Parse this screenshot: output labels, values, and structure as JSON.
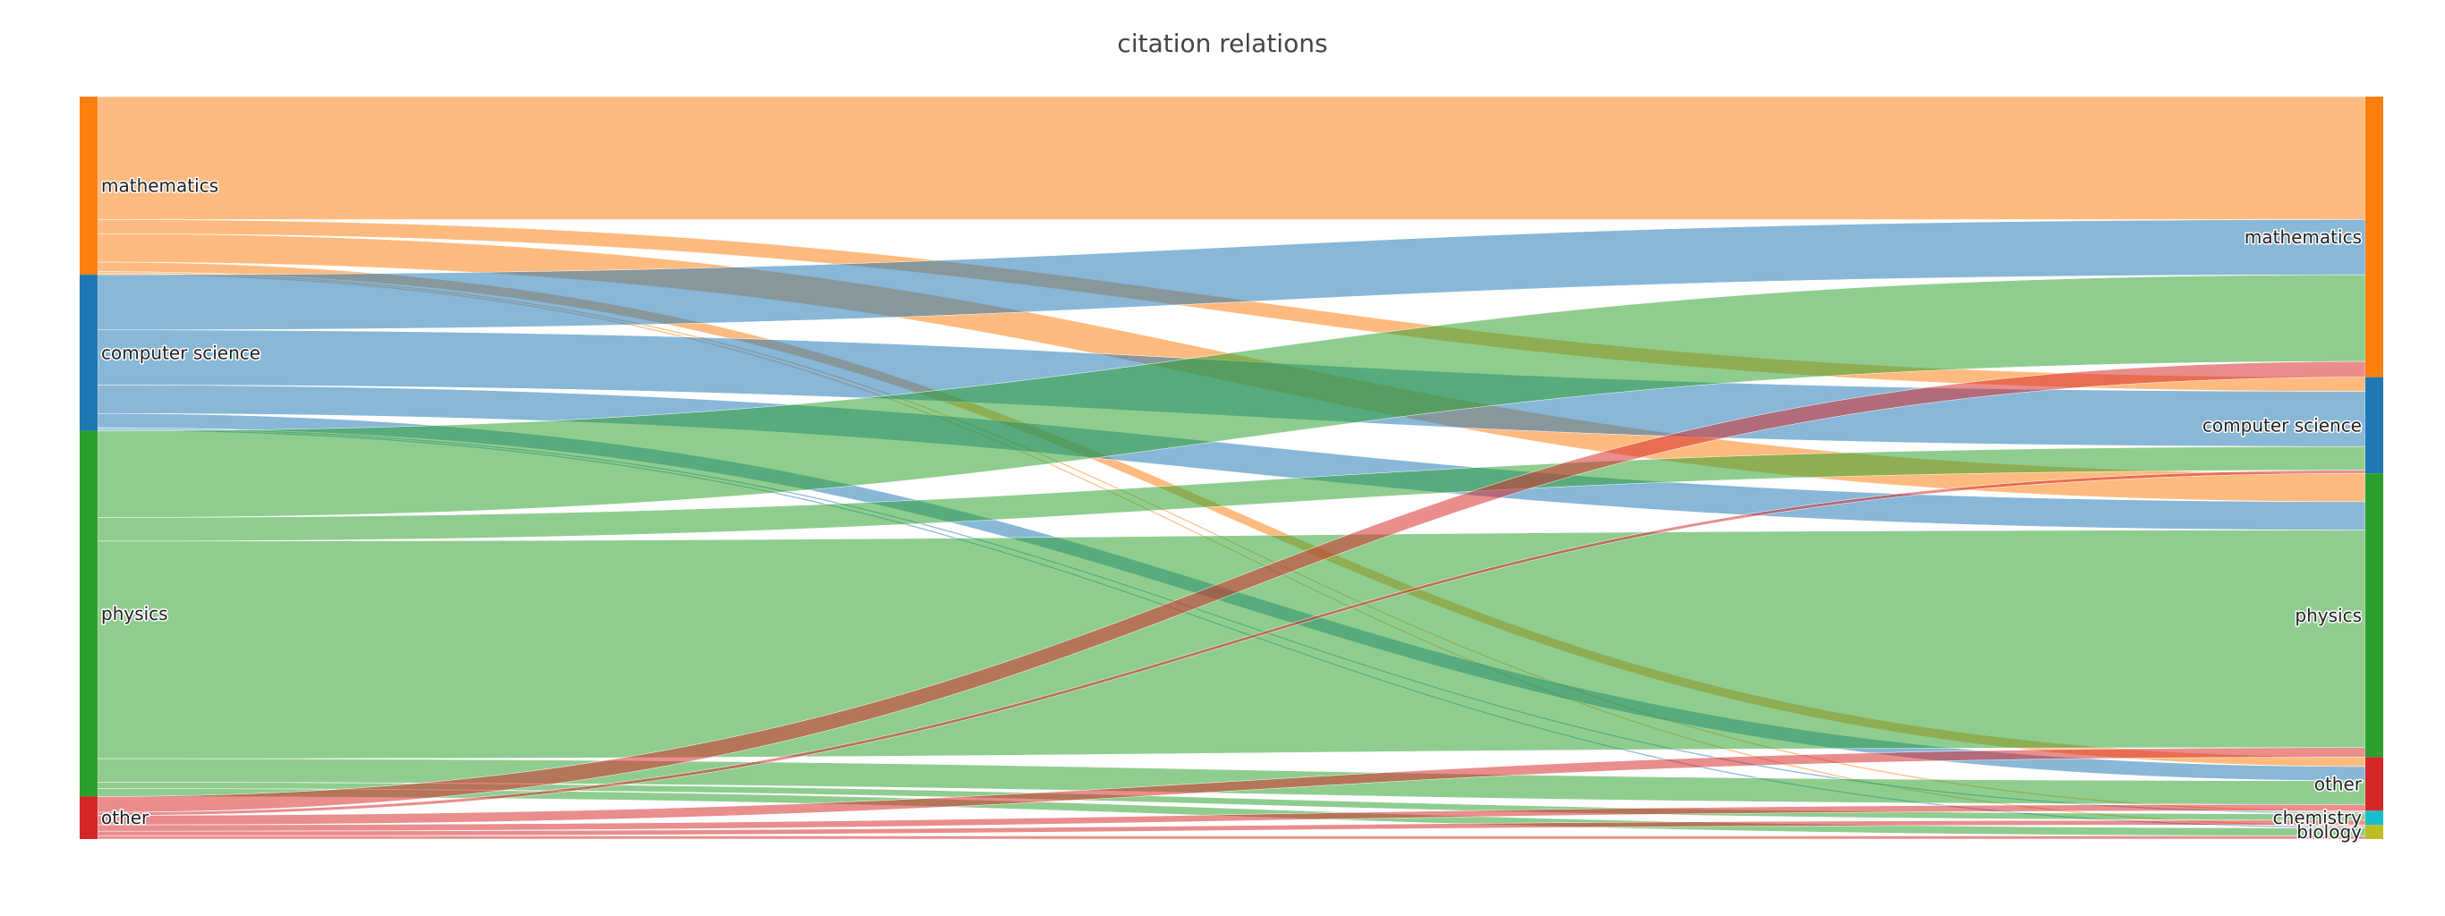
{
  "chart_data": {
    "type": "sankey",
    "title": "citation relations",
    "colors": {
      "mathematics": "#ff7f0e",
      "computer science": "#1f77b4",
      "physics": "#2ca02c",
      "other": "#d62728",
      "chemistry": "#17becf",
      "biology": "#bcbd22"
    },
    "sources": [
      {
        "name": "mathematics",
        "label": "mathematics"
      },
      {
        "name": "computer science",
        "label": "computer science"
      },
      {
        "name": "physics",
        "label": "physics"
      },
      {
        "name": "other",
        "label": "other"
      }
    ],
    "targets": [
      {
        "name": "mathematics",
        "label": "mathematics"
      },
      {
        "name": "computer science",
        "label": "computer science"
      },
      {
        "name": "physics",
        "label": "physics"
      },
      {
        "name": "other",
        "label": "other"
      },
      {
        "name": "chemistry",
        "label": "chemistry"
      },
      {
        "name": "biology",
        "label": "biology"
      }
    ],
    "links": [
      {
        "source": "mathematics",
        "target": "mathematics",
        "value": 78
      },
      {
        "source": "mathematics",
        "target": "computer science",
        "value": 9
      },
      {
        "source": "mathematics",
        "target": "physics",
        "value": 18
      },
      {
        "source": "mathematics",
        "target": "other",
        "value": 6
      },
      {
        "source": "mathematics",
        "target": "chemistry",
        "value": 1
      },
      {
        "source": "mathematics",
        "target": "biology",
        "value": 1
      },
      {
        "source": "computer science",
        "target": "mathematics",
        "value": 35
      },
      {
        "source": "computer science",
        "target": "computer science",
        "value": 35
      },
      {
        "source": "computer science",
        "target": "physics",
        "value": 18
      },
      {
        "source": "computer science",
        "target": "other",
        "value": 9
      },
      {
        "source": "computer science",
        "target": "chemistry",
        "value": 1
      },
      {
        "source": "computer science",
        "target": "biology",
        "value": 1
      },
      {
        "source": "physics",
        "target": "mathematics",
        "value": 55
      },
      {
        "source": "physics",
        "target": "computer science",
        "value": 15
      },
      {
        "source": "physics",
        "target": "physics",
        "value": 138
      },
      {
        "source": "physics",
        "target": "other",
        "value": 15
      },
      {
        "source": "physics",
        "target": "chemistry",
        "value": 4
      },
      {
        "source": "physics",
        "target": "biology",
        "value": 5
      },
      {
        "source": "other",
        "target": "mathematics",
        "value": 10
      },
      {
        "source": "other",
        "target": "computer science",
        "value": 2
      },
      {
        "source": "other",
        "target": "physics",
        "value": 6
      },
      {
        "source": "other",
        "target": "other",
        "value": 4
      },
      {
        "source": "other",
        "target": "chemistry",
        "value": 3
      },
      {
        "source": "other",
        "target": "biology",
        "value": 2
      }
    ]
  }
}
